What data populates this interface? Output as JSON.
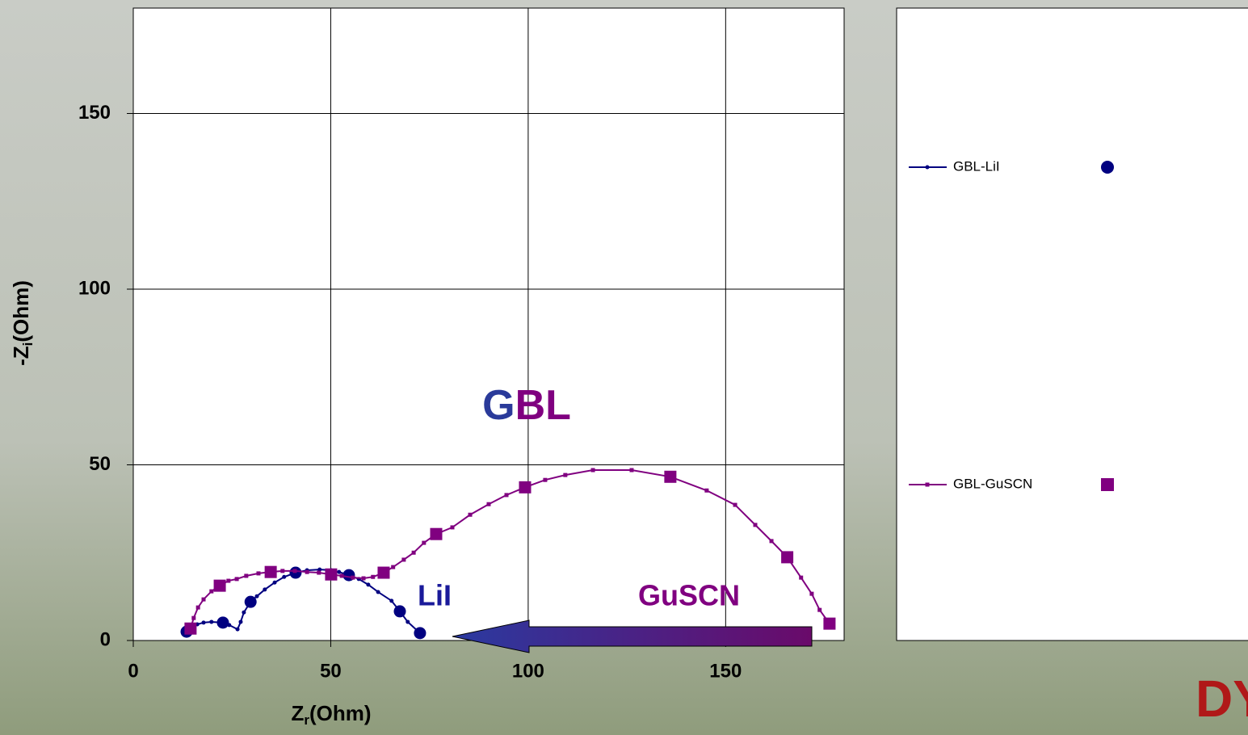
{
  "chart_data": {
    "type": "line",
    "x_label": {
      "main": "Z",
      "sub": "r",
      "unit": "(Ohm)"
    },
    "y_label": {
      "main": "-Z",
      "sub": "i",
      "unit": "(Ohm)"
    },
    "xlim": [
      0,
      180
    ],
    "ylim": [
      0,
      180
    ],
    "xticks": [
      0,
      50,
      100,
      150
    ],
    "yticks": [
      0,
      50,
      100,
      150
    ],
    "grid": true,
    "legend": "right",
    "series": [
      {
        "name": "GBL-LiI",
        "color": "#000080",
        "x": [
          13.5,
          14.5,
          16.2,
          17.8,
          19.8,
          22.7,
          24.3,
          26.4,
          27.2,
          28.0,
          29.7,
          31.3,
          33.3,
          35.8,
          38.2,
          41.1,
          44.0,
          47.2,
          50.1,
          52.1,
          54.6,
          57.1,
          59.5,
          62.0,
          65.4,
          67.5,
          69.5,
          72.6
        ],
        "values": [
          2.5,
          3.7,
          4.6,
          5.1,
          5.3,
          5.1,
          4.4,
          3.2,
          5.3,
          8.0,
          11.0,
          12.6,
          14.5,
          16.5,
          18.1,
          19.3,
          20.0,
          20.2,
          20.0,
          19.5,
          18.6,
          17.5,
          15.9,
          13.8,
          11.3,
          8.3,
          5.3,
          2.1
        ]
      },
      {
        "name": "GBL-GuSCN",
        "color": "#800080",
        "x": [
          14.5,
          15.3,
          16.4,
          17.8,
          19.8,
          21.9,
          24.1,
          26.2,
          28.6,
          31.7,
          34.8,
          37.8,
          40.9,
          44.0,
          47.0,
          50.1,
          52.8,
          55.6,
          58.3,
          60.7,
          63.4,
          65.8,
          68.5,
          71.0,
          73.6,
          76.7,
          80.8,
          85.3,
          90.0,
          94.5,
          99.2,
          104.3,
          109.4,
          116.4,
          126.2,
          136.0,
          145.2,
          152.4,
          157.5,
          161.6,
          165.6,
          169.1,
          171.8,
          173.8,
          176.3
        ],
        "values": [
          3.4,
          6.4,
          9.4,
          11.7,
          14.0,
          15.6,
          17.0,
          17.5,
          18.4,
          19.1,
          19.5,
          19.8,
          19.8,
          19.5,
          19.3,
          18.8,
          18.4,
          17.9,
          17.7,
          18.1,
          19.3,
          20.9,
          23.0,
          25.0,
          27.8,
          30.3,
          32.2,
          35.8,
          38.8,
          41.4,
          43.6,
          45.7,
          47.1,
          48.5,
          48.5,
          46.6,
          42.7,
          38.6,
          32.9,
          28.3,
          23.7,
          17.9,
          13.3,
          8.7,
          4.8
        ]
      }
    ],
    "annotations": {
      "title_parts": [
        "G",
        "BL"
      ],
      "lii": "LiI",
      "guscn": "GuSCN"
    },
    "logo": "DYE"
  }
}
